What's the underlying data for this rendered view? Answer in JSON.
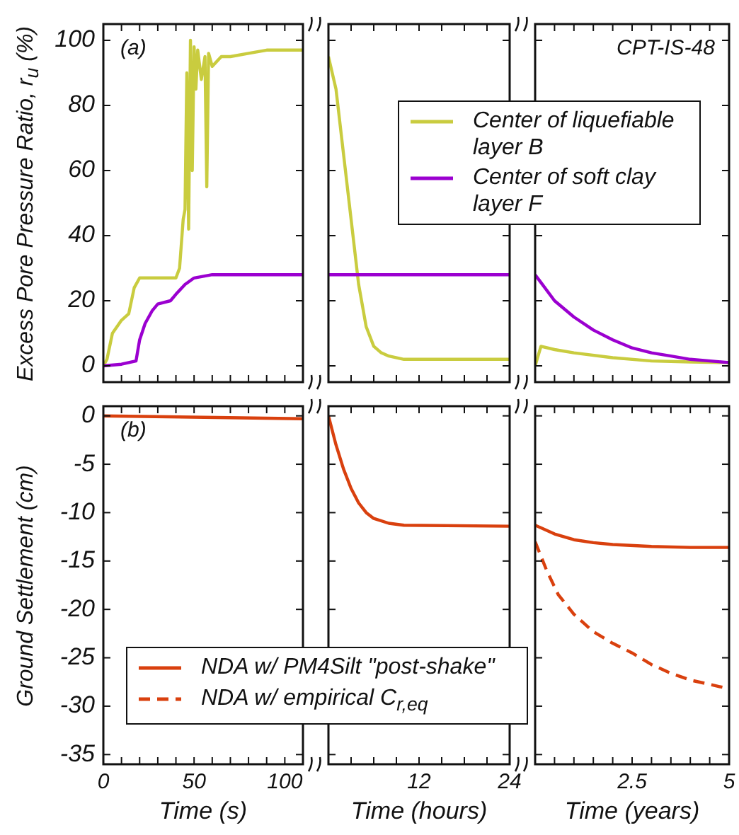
{
  "chart_data": [
    {
      "type": "line",
      "ylabel": "Excess Pore Pressure Ratio, r$_{u}$ (%)",
      "annotations": [
        "(a)"
      ],
      "marker": "none",
      "tick_labels": "y",
      "xlim": [
        0,
        110
      ],
      "xticks": [
        0,
        {
          "value": 10,
          "label": null
        },
        {
          "value": 20,
          "label": null
        },
        {
          "value": 30,
          "label": null
        },
        {
          "value": 40,
          "label": null
        },
        50,
        {
          "value": 60,
          "label": null
        },
        {
          "value": 70,
          "label": null
        },
        {
          "value": 80,
          "label": null
        },
        {
          "value": 90,
          "label": null
        },
        100,
        {
          "value": 110,
          "label": null
        }
      ],
      "ylim": [
        -5,
        105
      ],
      "yticks": [
        0,
        20,
        40,
        60,
        80,
        100
      ],
      "series": [
        {
          "color": "#c9cc3f",
          "line_style": "solid",
          "x": [
            0,
            2,
            5,
            10,
            14,
            17,
            20,
            40,
            42,
            44,
            45,
            46,
            47,
            48,
            49,
            50,
            51,
            52,
            54,
            56,
            57,
            58,
            60,
            65,
            70,
            80,
            90,
            100,
            110
          ],
          "values": [
            0,
            2,
            10,
            14,
            16,
            24,
            27,
            27,
            30,
            45,
            48,
            90,
            42,
            100,
            60,
            98,
            85,
            97,
            88,
            95,
            55,
            96,
            92,
            95,
            95,
            96,
            97,
            97,
            97
          ]
        },
        {
          "color": "#9b00d0",
          "line_style": "solid",
          "x": [
            0,
            10,
            18,
            20,
            23,
            27,
            30,
            37,
            40,
            45,
            50,
            60,
            110
          ],
          "values": [
            0,
            0.5,
            1.5,
            8,
            13,
            17,
            19,
            20,
            22,
            25,
            27,
            28,
            28
          ]
        }
      ]
    },
    {
      "type": "line",
      "marker": "none",
      "tick_labels": false,
      "xlim": [
        0,
        24
      ],
      "xticks": [
        {
          "value": 0,
          "label": null
        },
        {
          "value": 3,
          "label": null
        },
        {
          "value": 6,
          "label": null
        },
        {
          "value": 9,
          "label": null
        },
        12,
        {
          "value": 15,
          "label": null
        },
        {
          "value": 18,
          "label": null
        },
        {
          "value": 21,
          "label": null
        },
        24
      ],
      "ylim": [
        -5,
        105
      ],
      "yticks": [
        0,
        20,
        40,
        60,
        80,
        100
      ],
      "series": [
        {
          "color": "#c9cc3f",
          "line_style": "solid",
          "x": [
            0,
            1,
            2,
            3,
            4,
            5,
            6,
            7,
            8,
            10,
            24
          ],
          "values": [
            95,
            85,
            65,
            45,
            25,
            12,
            6,
            4,
            3,
            2,
            2
          ]
        },
        {
          "color": "#9b00d0",
          "line_style": "solid",
          "x": [
            0,
            24
          ],
          "values": [
            28,
            28
          ]
        }
      ]
    },
    {
      "type": "line",
      "annotations": [
        "CPT-IS-48"
      ],
      "legend": "top left",
      "marker": "none",
      "tick_labels": false,
      "xlim": [
        0,
        5
      ],
      "xticks": [
        {
          "value": 0,
          "label": null
        },
        {
          "value": 0.5,
          "label": null
        },
        {
          "value": 1,
          "label": null
        },
        {
          "value": 1.5,
          "label": null
        },
        {
          "value": 2,
          "label": null
        },
        2.5,
        {
          "value": 3,
          "label": null
        },
        {
          "value": 3.5,
          "label": null
        },
        {
          "value": 4,
          "label": null
        },
        {
          "value": 4.5,
          "label": null
        },
        5
      ],
      "ylim": [
        -5,
        105
      ],
      "yticks": [
        0,
        20,
        40,
        60,
        80,
        100
      ],
      "series": [
        {
          "name": "Center of liquefiable layer B",
          "color": "#c9cc3f",
          "line_style": "solid",
          "x": [
            0,
            0.15,
            0.5,
            1,
            2,
            3,
            4,
            5
          ],
          "values": [
            0,
            6,
            5,
            4,
            2.5,
            1.5,
            1.2,
            1
          ]
        },
        {
          "name": "Center of soft clay layer F",
          "color": "#9b00d0",
          "line_style": "solid",
          "x": [
            0,
            0.5,
            1,
            1.5,
            2,
            2.5,
            3,
            3.5,
            4,
            5
          ],
          "values": [
            28,
            20,
            15,
            11,
            8,
            5.5,
            4,
            3,
            2,
            1
          ]
        }
      ]
    },
    {
      "type": "line",
      "ylabel": "Ground Settlement (cm)",
      "xlabel": "Time (s)",
      "annotations": [
        "(b)"
      ],
      "marker": "none",
      "xlim": [
        0,
        110
      ],
      "xticks": [
        0,
        {
          "value": 10,
          "label": null
        },
        {
          "value": 20,
          "label": null
        },
        {
          "value": 30,
          "label": null
        },
        {
          "value": 40,
          "label": null
        },
        50,
        {
          "value": 60,
          "label": null
        },
        {
          "value": 70,
          "label": null
        },
        {
          "value": 80,
          "label": null
        },
        {
          "value": 90,
          "label": null
        },
        100,
        {
          "value": 110,
          "label": null
        }
      ],
      "ylim": [
        -36,
        1
      ],
      "yticks": [
        -35,
        -30,
        -25,
        -20,
        -15,
        -10,
        -5,
        0
      ],
      "series": [
        {
          "color": "#d9400e",
          "line_style": "solid",
          "x": [
            0,
            110
          ],
          "values": [
            0,
            -0.3
          ]
        }
      ]
    },
    {
      "type": "line",
      "xlabel": "Time (hours)",
      "marker": "none",
      "tick_labels": "x",
      "xlim": [
        0,
        24
      ],
      "xticks": [
        {
          "value": 0,
          "label": null
        },
        {
          "value": 3,
          "label": null
        },
        {
          "value": 6,
          "label": null
        },
        {
          "value": 9,
          "label": null
        },
        12,
        {
          "value": 15,
          "label": null
        },
        {
          "value": 18,
          "label": null
        },
        {
          "value": 21,
          "label": null
        },
        24
      ],
      "ylim": [
        -36,
        1
      ],
      "yticks": [
        -35,
        -30,
        -25,
        -20,
        -15,
        -10,
        -5,
        0
      ],
      "series": [
        {
          "color": "#d9400e",
          "line_style": "solid",
          "x": [
            0,
            1,
            2,
            3,
            4,
            5,
            6,
            8,
            10,
            24
          ],
          "values": [
            0,
            -3,
            -5.5,
            -7.5,
            -9,
            -10,
            -10.6,
            -11.1,
            -11.3,
            -11.4
          ]
        }
      ]
    },
    {
      "type": "line",
      "xlabel": "Time (years)",
      "legend": "bottom left",
      "marker": "none",
      "tick_labels": "x",
      "xlim": [
        0,
        5
      ],
      "xticks": [
        {
          "value": 0,
          "label": null
        },
        {
          "value": 0.5,
          "label": null
        },
        {
          "value": 1,
          "label": null
        },
        {
          "value": 1.5,
          "label": null
        },
        {
          "value": 2,
          "label": null
        },
        2.5,
        {
          "value": 3,
          "label": null
        },
        {
          "value": 3.5,
          "label": null
        },
        {
          "value": 4,
          "label": null
        },
        {
          "value": 4.5,
          "label": null
        },
        5
      ],
      "ylim": [
        -36,
        1
      ],
      "yticks": [
        -35,
        -30,
        -25,
        -20,
        -15,
        -10,
        -5,
        0
      ],
      "series": [
        {
          "name": "NDA w/ PM4Silt \"post-shake\"",
          "color": "#d9400e",
          "line_style": "solid",
          "x": [
            0,
            0.5,
            1,
            1.5,
            2,
            3,
            4,
            5
          ],
          "values": [
            -11.3,
            -12.2,
            -12.8,
            -13.1,
            -13.3,
            -13.5,
            -13.6,
            -13.6
          ]
        },
        {
          "name": "NDA w/ empirical C$_{r,eq}$",
          "color": "#d9400e",
          "line_style": "dashed",
          "x": [
            0,
            0.3,
            0.6,
            1,
            1.5,
            2,
            2.5,
            3,
            3.5,
            4,
            5
          ],
          "values": [
            -13,
            -16,
            -18.5,
            -20.5,
            -22.3,
            -23.5,
            -24.5,
            -25.7,
            -26.6,
            -27.3,
            -28.2
          ]
        }
      ]
    }
  ]
}
